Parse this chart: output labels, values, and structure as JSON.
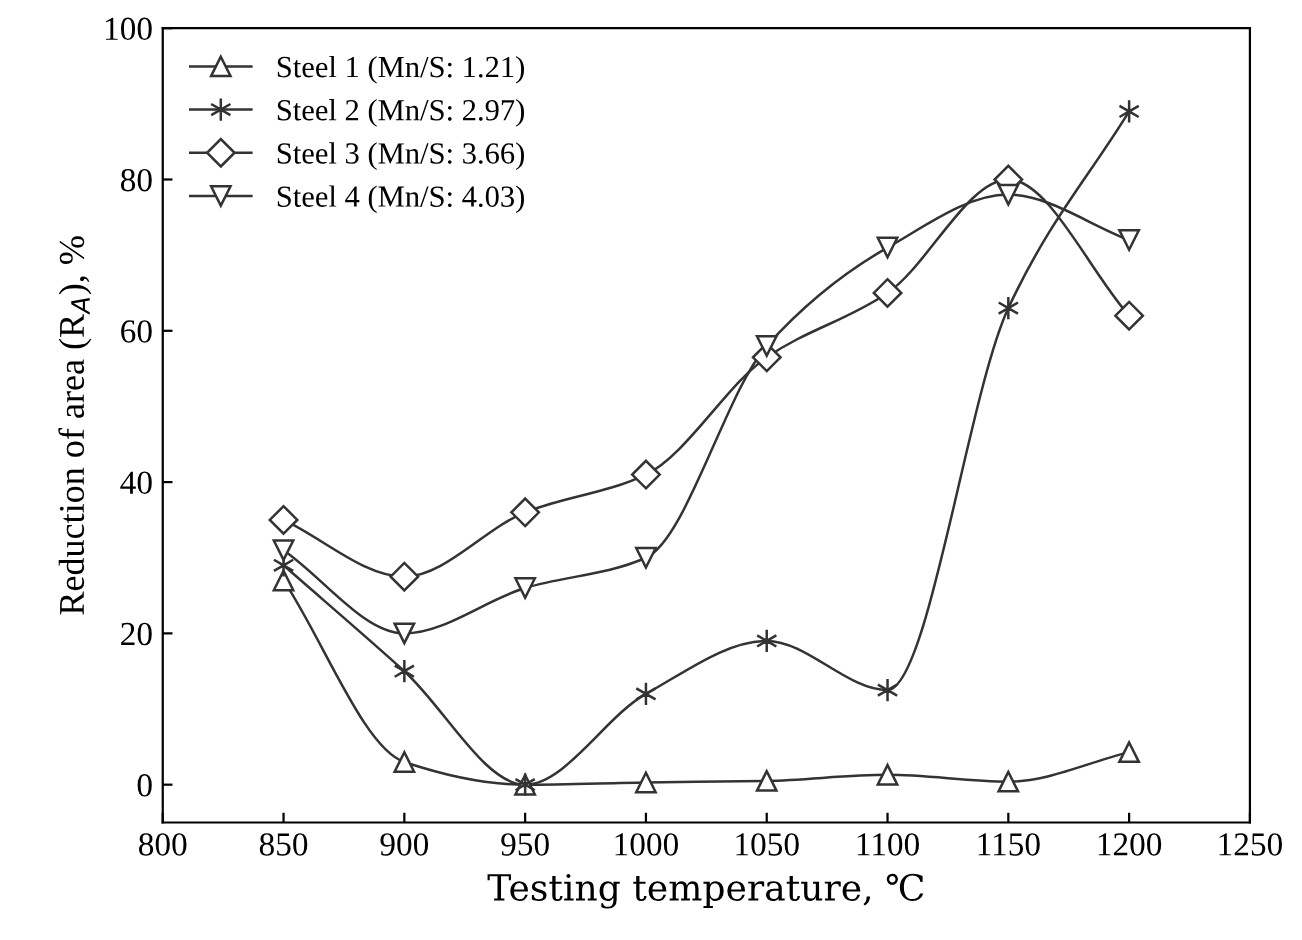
{
  "chart_data": {
    "type": "line",
    "xlabel": "Testing temperature, ℃",
    "ylabel": "Reduction of area (R$_{A}$), %",
    "x": [
      850,
      900,
      950,
      1000,
      1050,
      1100,
      1150,
      1200
    ],
    "series": [
      {
        "name": "Steel 1 (Mn/S: 1.21)",
        "color": "#333333",
        "marker": "triangle",
        "values": [
          27,
          3,
          0,
          0.3,
          0.5,
          1.3,
          0.4,
          4.3
        ]
      },
      {
        "name": "Steel 2 (Mn/S: 2.97)",
        "color": "#333333",
        "marker": "cross",
        "values": [
          29,
          15,
          0,
          12,
          19,
          12.5,
          63,
          89
        ]
      },
      {
        "name": "Steel 3 (Mn/S: 3.66)",
        "color": "#333333",
        "marker": "diamond",
        "values": [
          35,
          27.5,
          36,
          41,
          56.5,
          65,
          80,
          62
        ]
      },
      {
        "name": "Steel 4 (Mn/S: 4.03)",
        "color": "#333333",
        "marker": "triangle_down",
        "values": [
          31,
          20,
          26,
          30,
          58,
          71,
          78,
          72
        ]
      }
    ],
    "xlim": [
      800,
      1250
    ],
    "xticks": [
      800,
      850,
      900,
      950,
      1000,
      1050,
      1100,
      1150,
      1200,
      1250
    ],
    "ylim": [
      -5,
      100
    ],
    "yticks": [
      0,
      20,
      40,
      60,
      80,
      100
    ],
    "grid": false,
    "legend": "top left",
    "line_style": "solid"
  }
}
